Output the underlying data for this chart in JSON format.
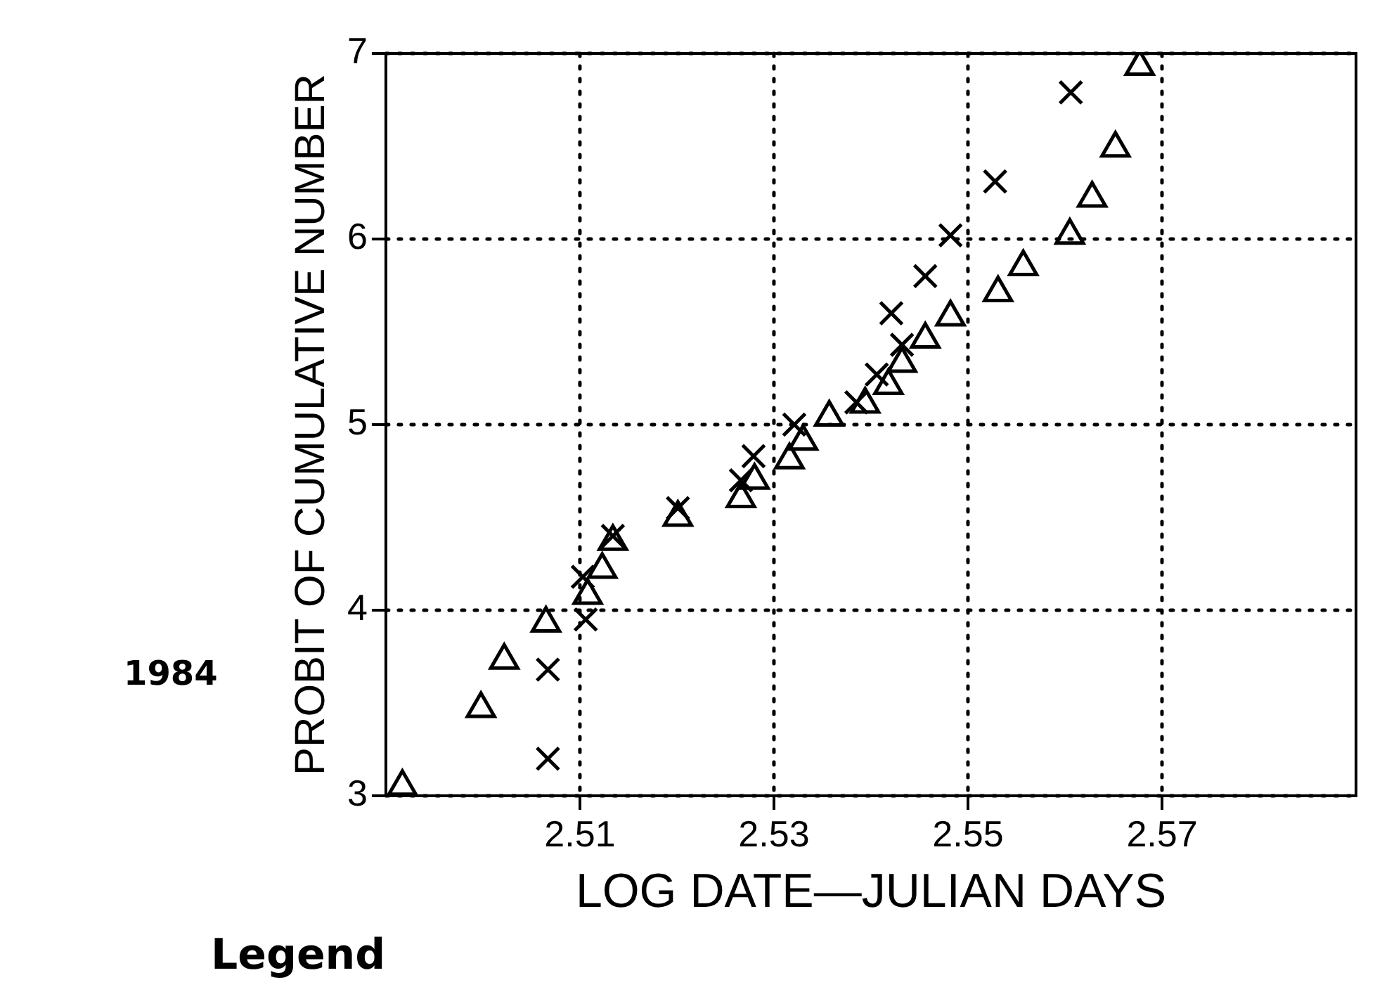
{
  "chart_data": {
    "type": "scatter",
    "xlabel": "LOG DATE—JULIAN DAYS",
    "ylabel": "PROBIT OF CUMULATIVE NUMBER",
    "xlim": [
      2.49,
      2.59
    ],
    "xticks": [
      2.51,
      2.53,
      2.55,
      2.57
    ],
    "ylim": [
      3,
      7
    ],
    "yticks": [
      3,
      4,
      5,
      6,
      7
    ],
    "grid": true,
    "legend": false,
    "annotations": [
      "1984",
      "Legend"
    ],
    "series": [
      {
        "color": "#000000",
        "marker": "triangle",
        "x": [
          2.4917,
          2.4998,
          2.5022,
          2.5065,
          2.5108,
          2.5123,
          2.5134,
          2.5201,
          2.5266,
          2.528,
          2.5316,
          2.533,
          2.5357,
          2.5394,
          2.5418,
          2.5432,
          2.5456,
          2.5482,
          2.5531,
          2.5557,
          2.5605,
          2.5628,
          2.5652,
          2.5677
        ],
        "values": [
          3.05,
          3.47,
          3.73,
          3.93,
          4.08,
          4.22,
          4.37,
          4.5,
          4.6,
          4.7,
          4.81,
          4.91,
          5.04,
          5.11,
          5.21,
          5.33,
          5.46,
          5.58,
          5.71,
          5.85,
          6.02,
          6.22,
          6.49,
          6.93
        ]
      },
      {
        "color": "#000000",
        "marker": "cross",
        "x": [
          2.5067,
          2.5067,
          2.5106,
          2.5103,
          2.5134,
          2.5201,
          2.5266,
          2.5279,
          2.5321,
          2.5385,
          2.5406,
          2.5432,
          2.5421,
          2.5456,
          2.5482,
          2.5528,
          2.5606
        ],
        "values": [
          3.2,
          3.68,
          3.95,
          4.18,
          4.4,
          4.55,
          4.7,
          4.83,
          5.0,
          5.12,
          5.27,
          5.43,
          5.6,
          5.8,
          6.02,
          6.31,
          6.79
        ]
      }
    ]
  }
}
